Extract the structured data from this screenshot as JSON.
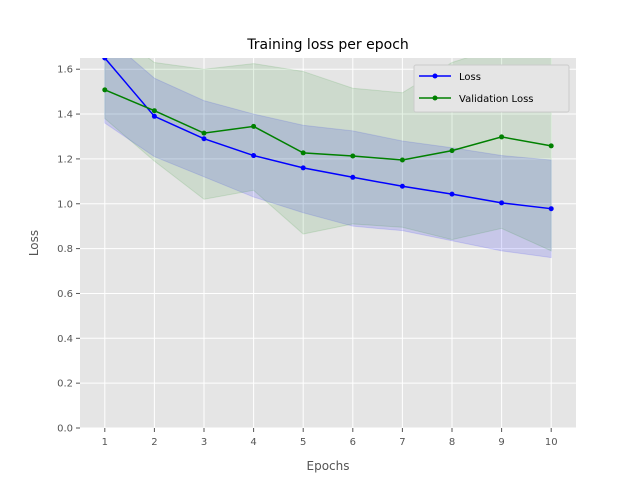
{
  "chart_data": {
    "type": "line",
    "title": "Training loss per epoch",
    "xlabel": "Epochs",
    "ylabel": "Loss",
    "xlim": [
      0.5,
      10.5
    ],
    "ylim": [
      0.0,
      1.65
    ],
    "x": [
      1,
      2,
      3,
      4,
      5,
      6,
      7,
      8,
      9,
      10
    ],
    "xticks": [
      "1",
      "2",
      "3",
      "4",
      "5",
      "6",
      "7",
      "8",
      "9",
      "10"
    ],
    "yticks": [
      "0.0",
      "0.2",
      "0.4",
      "0.6",
      "0.8",
      "1.0",
      "1.2",
      "1.4",
      "1.6"
    ],
    "grid": true,
    "legend_position": "top-right",
    "series": [
      {
        "name": "Loss",
        "color": "#0000ff",
        "values": [
          1.65,
          1.39,
          1.29,
          1.215,
          1.16,
          1.118,
          1.078,
          1.043,
          1.004,
          0.978
        ],
        "band_upper": [
          1.75,
          1.56,
          1.46,
          1.4,
          1.35,
          1.325,
          1.28,
          1.25,
          1.215,
          1.195
        ],
        "band_lower": [
          1.36,
          1.21,
          1.12,
          1.03,
          0.96,
          0.9,
          0.88,
          0.835,
          0.79,
          0.76
        ]
      },
      {
        "name": "Validation Loss",
        "color": "#008000",
        "values": [
          1.508,
          1.415,
          1.315,
          1.345,
          1.227,
          1.213,
          1.195,
          1.237,
          1.298,
          1.258
        ],
        "band_upper": [
          1.8,
          1.63,
          1.6,
          1.625,
          1.59,
          1.515,
          1.495,
          1.63,
          1.7,
          1.72
        ],
        "band_lower": [
          1.38,
          1.19,
          1.02,
          1.06,
          0.865,
          0.91,
          0.895,
          0.84,
          0.89,
          0.79
        ]
      }
    ]
  }
}
